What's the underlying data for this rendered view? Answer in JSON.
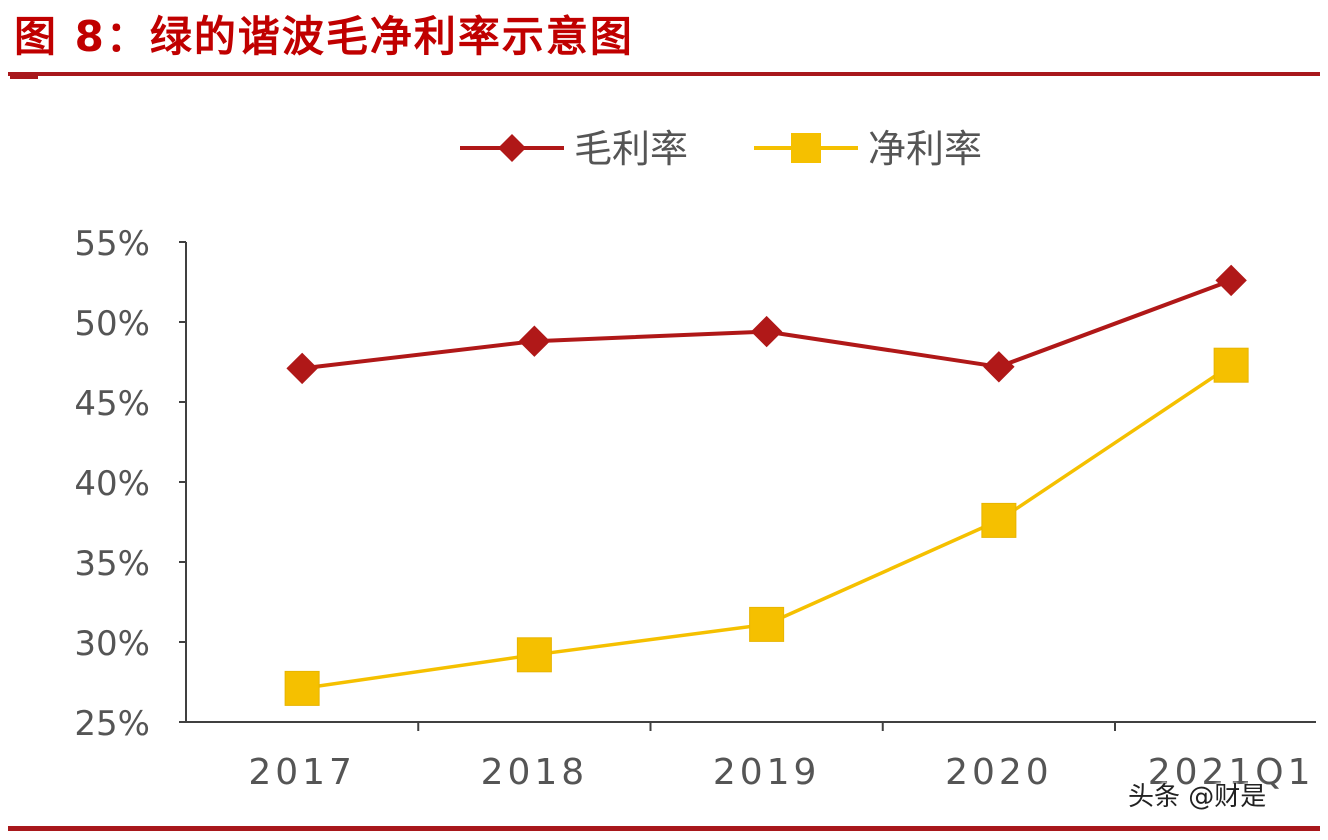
{
  "figure": {
    "title": "图 8：绿的谐波毛净利率示意图",
    "watermark": "头条 @财是"
  },
  "colors": {
    "accent_red": "#a8181c",
    "gross_margin": "#b01818",
    "net_margin": "#f5c000",
    "axis": "#404040",
    "tick_label": "#555555",
    "legend_text": "#555555"
  },
  "chart_data": {
    "type": "line",
    "categories": [
      "2017",
      "2018",
      "2019",
      "2020",
      "2021Q1"
    ],
    "series": [
      {
        "name": "毛利率",
        "values": [
          47.1,
          48.8,
          49.4,
          47.2,
          52.6
        ],
        "color": "#b01818",
        "marker": "diamond"
      },
      {
        "name": "净利率",
        "values": [
          27.1,
          29.2,
          31.1,
          37.6,
          47.3
        ],
        "color": "#f5c000",
        "marker": "square"
      }
    ],
    "ylim": [
      25,
      55
    ],
    "yticks": [
      25,
      30,
      35,
      40,
      45,
      50,
      55
    ],
    "ytick_labels": [
      "25%",
      "30%",
      "35%",
      "40%",
      "45%",
      "50%",
      "55%"
    ],
    "grid": false,
    "legend_position": "top-center",
    "title": "",
    "xlabel": "",
    "ylabel": ""
  }
}
